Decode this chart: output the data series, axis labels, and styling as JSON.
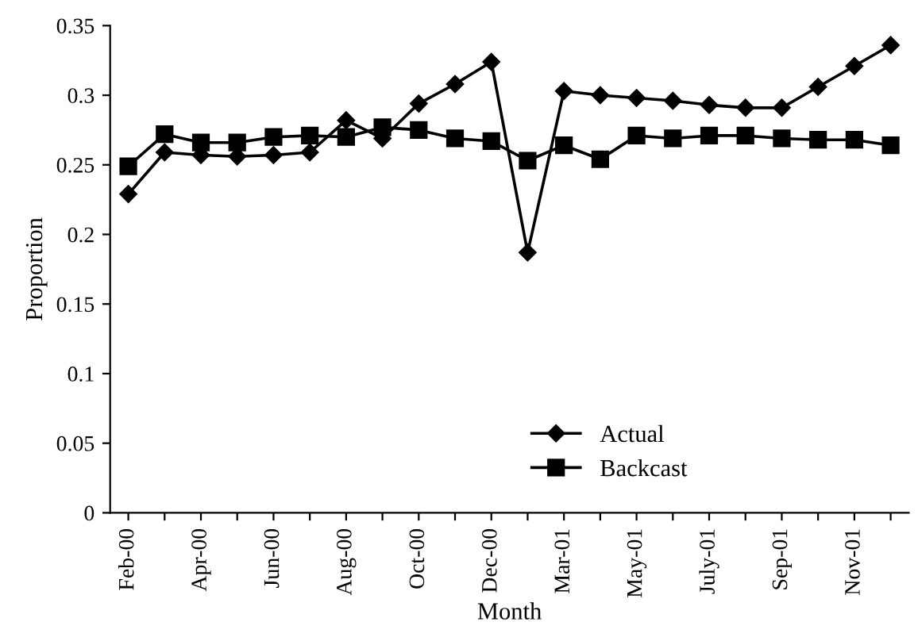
{
  "chart_data": {
    "type": "line",
    "xlabel": "Month",
    "ylabel": "Proportion",
    "categories": [
      "Feb-00",
      null,
      "Apr-00",
      null,
      "Jun-00",
      null,
      "Aug-00",
      null,
      "Oct-00",
      null,
      "Dec-00",
      null,
      "Mar-01",
      null,
      "May-01",
      null,
      "July-01",
      null,
      "Sep-01",
      null,
      "Nov-01",
      null
    ],
    "series": [
      {
        "name": "Actual",
        "color": "#000000",
        "marker": "diamond",
        "values": [
          0.229,
          0.259,
          0.257,
          0.256,
          0.257,
          0.259,
          0.282,
          0.269,
          0.294,
          0.308,
          0.324,
          0.187,
          0.303,
          0.3,
          0.298,
          0.296,
          0.293,
          0.291,
          0.291,
          0.306,
          0.321,
          0.336
        ]
      },
      {
        "name": "Backcast",
        "color": "#000000",
        "marker": "square",
        "values": [
          0.249,
          0.272,
          0.266,
          0.266,
          0.27,
          0.271,
          0.27,
          0.277,
          0.275,
          0.269,
          0.267,
          0.253,
          0.264,
          0.254,
          0.271,
          0.269,
          0.271,
          0.271,
          0.269,
          0.268,
          0.268,
          0.264
        ]
      }
    ],
    "ylim": [
      0,
      0.35
    ],
    "yticks": [
      0,
      0.05,
      0.1,
      0.15,
      0.2,
      0.25,
      0.3,
      0.35
    ],
    "grid": false,
    "legend": "bottom right",
    "line_style": "solid"
  }
}
